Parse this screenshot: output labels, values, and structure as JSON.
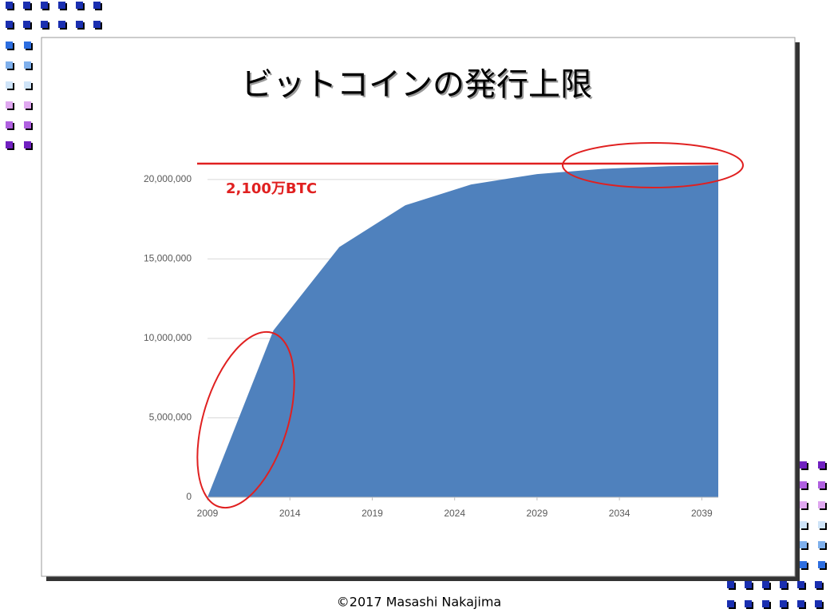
{
  "chart_data": {
    "type": "area",
    "title": "ビットコインの発行上限",
    "x": [
      2009,
      2013,
      2017,
      2021,
      2025,
      2029,
      2033,
      2037,
      2040
    ],
    "values": [
      0,
      10500000,
      15750000,
      18375000,
      19687500,
      20343750,
      20671875,
      20835937,
      20900000
    ],
    "color": "#4f81bd",
    "xlim": [
      2009,
      2040
    ],
    "xticks": [
      2009,
      2014,
      2019,
      2024,
      2029,
      2034,
      2039
    ],
    "ylim": [
      0,
      21000000
    ],
    "yticks": [
      0,
      {
        "value": 5000000,
        "label": "5,000,000"
      },
      {
        "value": 10000000,
        "label": "10,000,000"
      },
      {
        "value": 15000000,
        "label": "15,000,000"
      },
      {
        "value": 20000000,
        "label": "20,000,000"
      }
    ],
    "grid": true,
    "reference_line": {
      "value": 21000000,
      "label": "2,100万BTC",
      "color": "#e02020"
    },
    "footer": "©2017 Masashi Nakajima"
  }
}
